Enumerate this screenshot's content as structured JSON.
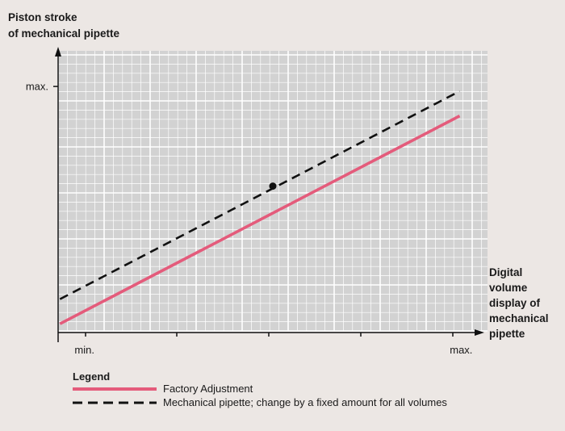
{
  "chart_data": {
    "type": "line",
    "ylabel_lines": [
      "Piston stroke",
      "of mechanical pipette"
    ],
    "xlabel_lines": [
      "Digital",
      "volume",
      "display of",
      "mechanical",
      "pipette"
    ],
    "xticks": [
      {
        "label": "min.",
        "value": 0
      },
      {
        "label": "max.",
        "value": 1
      }
    ],
    "yticks": [
      {
        "label": "max.",
        "value": 1
      }
    ],
    "xlim": [
      -0.07,
      1.07
    ],
    "ylim": [
      -0.03,
      1.15
    ],
    "grid": true,
    "legend_title": "Legend",
    "legend_position": "bottom-left",
    "series": [
      {
        "name": "Factory Adjustment",
        "color": "#e45b7b",
        "style": "solid",
        "x": [
          -0.065,
          0.996
        ],
        "y": [
          0.0,
          0.876
        ]
      },
      {
        "name": "Mechanical pipette; change by a fixed amount for all volumes",
        "color": "#111111",
        "style": "dashed",
        "x": [
          -0.065,
          0.996
        ],
        "y": [
          0.104,
          0.98
        ]
      }
    ],
    "points": [
      {
        "x": 0.5,
        "y": 0.58
      }
    ]
  }
}
